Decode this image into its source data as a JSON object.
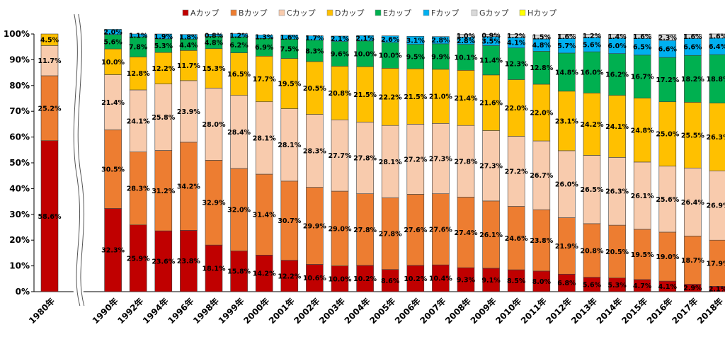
{
  "chart_data": {
    "type": "bar",
    "stacked": true,
    "percent": true,
    "categories": [
      "1980年",
      "1990年",
      "1992年",
      "1994年",
      "1996年",
      "1998年",
      "1999年",
      "2000年",
      "2001年",
      "2002年",
      "2003年",
      "2004年",
      "2005年",
      "2006年",
      "2007年",
      "2008年",
      "2009年",
      "2010年",
      "2011年",
      "2012年",
      "2013年",
      "2014年",
      "2015年",
      "2016年",
      "2017年",
      "2018年"
    ],
    "series": [
      {
        "name": "Aカップ",
        "color": "#c00000",
        "values": [
          58.6,
          32.3,
          25.9,
          23.6,
          23.8,
          18.1,
          15.8,
          14.2,
          12.2,
          10.6,
          10.0,
          10.2,
          8.6,
          10.2,
          10.4,
          9.3,
          9.1,
          8.5,
          8.0,
          6.8,
          5.6,
          5.3,
          4.7,
          4.1,
          2.9,
          2.1
        ]
      },
      {
        "name": "Bカップ",
        "color": "#ed7d31",
        "values": [
          25.2,
          30.5,
          28.3,
          31.2,
          34.2,
          32.9,
          32.0,
          31.4,
          30.7,
          29.9,
          29.0,
          27.8,
          27.8,
          27.6,
          27.6,
          27.4,
          26.1,
          24.6,
          23.8,
          21.9,
          20.8,
          20.5,
          19.5,
          19.0,
          18.7,
          17.9
        ]
      },
      {
        "name": "Cカップ",
        "color": "#f8cbad",
        "values": [
          11.7,
          21.4,
          24.1,
          25.8,
          23.9,
          28.0,
          28.4,
          28.1,
          28.1,
          28.3,
          27.7,
          27.8,
          28.1,
          27.2,
          27.3,
          27.8,
          27.3,
          27.2,
          26.7,
          26.0,
          26.5,
          26.3,
          26.1,
          25.6,
          26.4,
          26.9
        ]
      },
      {
        "name": "Dカップ",
        "color": "#ffc000",
        "values": [
          4.5,
          10.0,
          12.8,
          12.2,
          11.7,
          15.3,
          16.5,
          17.7,
          19.5,
          20.5,
          20.8,
          21.5,
          22.2,
          21.5,
          21.0,
          21.4,
          21.6,
          22.0,
          22.0,
          23.1,
          24.2,
          24.1,
          24.8,
          25.0,
          25.5,
          26.3
        ]
      },
      {
        "name": "Eカップ",
        "color": "#00b050",
        "values": [
          0,
          5.6,
          7.8,
          5.3,
          4.4,
          4.8,
          6.2,
          6.9,
          7.5,
          8.3,
          9.6,
          10.0,
          10.0,
          9.5,
          9.9,
          10.1,
          11.4,
          12.3,
          12.8,
          14.8,
          16.0,
          16.2,
          16.7,
          17.2,
          18.2,
          18.8
        ]
      },
      {
        "name": "Fカップ",
        "color": "#00b0f0",
        "values": [
          0,
          2.0,
          1.1,
          1.9,
          1.8,
          0.8,
          1.2,
          1.3,
          1.6,
          1.7,
          2.1,
          2.1,
          2.6,
          3.1,
          2.8,
          2.8,
          3.5,
          4.1,
          4.8,
          5.7,
          5.6,
          6.0,
          6.5,
          6.6,
          6.6,
          6.4
        ]
      },
      {
        "name": "Gカップ",
        "color": "#d9d9d9",
        "values": [
          0,
          0,
          0,
          0,
          0,
          0,
          0,
          0,
          0,
          0,
          0,
          0,
          0,
          0,
          0,
          1.0,
          0.9,
          1.2,
          1.5,
          1.6,
          1.2,
          1.4,
          1.6,
          2.3,
          1.6,
          1.6
        ]
      },
      {
        "name": "Hカップ",
        "color": "#ffff00",
        "values": [
          0,
          0,
          0,
          0,
          0,
          0,
          0,
          0,
          0,
          0,
          0,
          0,
          0,
          0,
          0,
          0,
          0,
          0,
          0,
          0,
          0,
          0,
          0,
          0,
          0,
          0
        ]
      }
    ],
    "yticks": [
      "0%",
      "10%",
      "20%",
      "30%",
      "40%",
      "50%",
      "60%",
      "70%",
      "80%",
      "90%",
      "100%"
    ],
    "ylim": [
      0,
      100
    ],
    "axis_break_after": "1980年",
    "legend_position": "top",
    "grid": false
  }
}
